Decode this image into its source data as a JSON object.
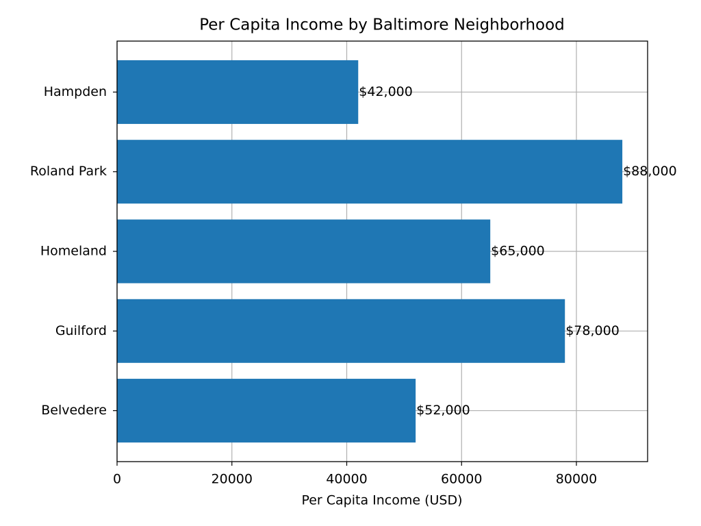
{
  "chart_data": {
    "type": "barh",
    "title": "Per Capita Income by Baltimore Neighborhood",
    "xlabel": "Per Capita Income (USD)",
    "categories": [
      "Belvedere",
      "Guilford",
      "Homeland",
      "Roland Park",
      "Hampden"
    ],
    "values": [
      52000,
      78000,
      65000,
      88000,
      42000
    ],
    "value_labels": [
      "$52,000",
      "$78,000",
      "$65,000",
      "$88,000",
      "$42,000"
    ],
    "color": "#1f77b4",
    "xlim": [
      0,
      92400
    ],
    "xticks": [
      0,
      20000,
      40000,
      60000,
      80000
    ],
    "grid": true
  }
}
